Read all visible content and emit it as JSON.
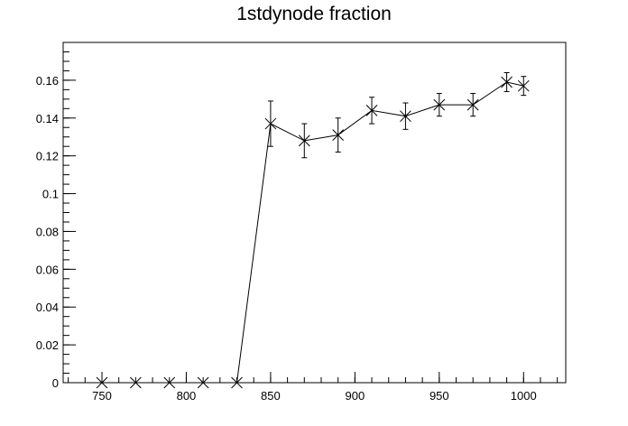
{
  "chart_data": {
    "type": "line",
    "title": "1stdynode fraction",
    "xlabel": "",
    "ylabel": "",
    "xlim": [
      727,
      1025
    ],
    "ylim": [
      0,
      0.18
    ],
    "x_ticks": [
      750,
      800,
      850,
      900,
      950,
      1000
    ],
    "y_ticks": [
      0,
      0.02,
      0.04,
      0.06,
      0.08,
      0.1,
      0.12,
      0.14,
      0.16
    ],
    "y_tick_labels": [
      "0",
      "0.02",
      "0.04",
      "0.06",
      "0.08",
      "0.1",
      "0.12",
      "0.14",
      "0.16"
    ],
    "x_minor_step": 10,
    "y_minor_step": 0.005,
    "grid": false,
    "marker": "x-cross",
    "series": [
      {
        "x": [
          750,
          770,
          790,
          810,
          830,
          850,
          870,
          890,
          910,
          930,
          950,
          970,
          990,
          1000
        ],
        "y": [
          0,
          0,
          0,
          0,
          0,
          0.137,
          0.128,
          0.131,
          0.144,
          0.141,
          0.147,
          0.147,
          0.159,
          0.157
        ],
        "yerr": [
          0,
          0,
          0,
          0,
          0,
          0.012,
          0.009,
          0.009,
          0.007,
          0.007,
          0.006,
          0.006,
          0.005,
          0.005
        ]
      }
    ]
  }
}
